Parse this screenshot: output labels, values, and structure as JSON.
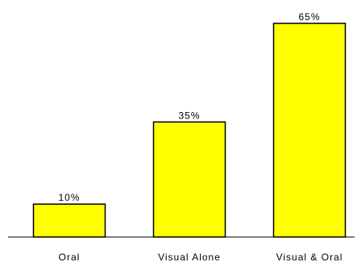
{
  "chart_data": {
    "type": "bar",
    "categories": [
      "Oral",
      "Visual Alone",
      "Visual & Oral"
    ],
    "values": [
      10,
      35,
      65
    ],
    "value_labels": [
      "10%",
      "35%",
      "65%"
    ],
    "title": "",
    "xlabel": "",
    "ylabel": "",
    "ylim": [
      0,
      65
    ],
    "grid": false,
    "legend": "none",
    "bar_color": "#FFFF00",
    "bar_edge_color": "#000000"
  }
}
